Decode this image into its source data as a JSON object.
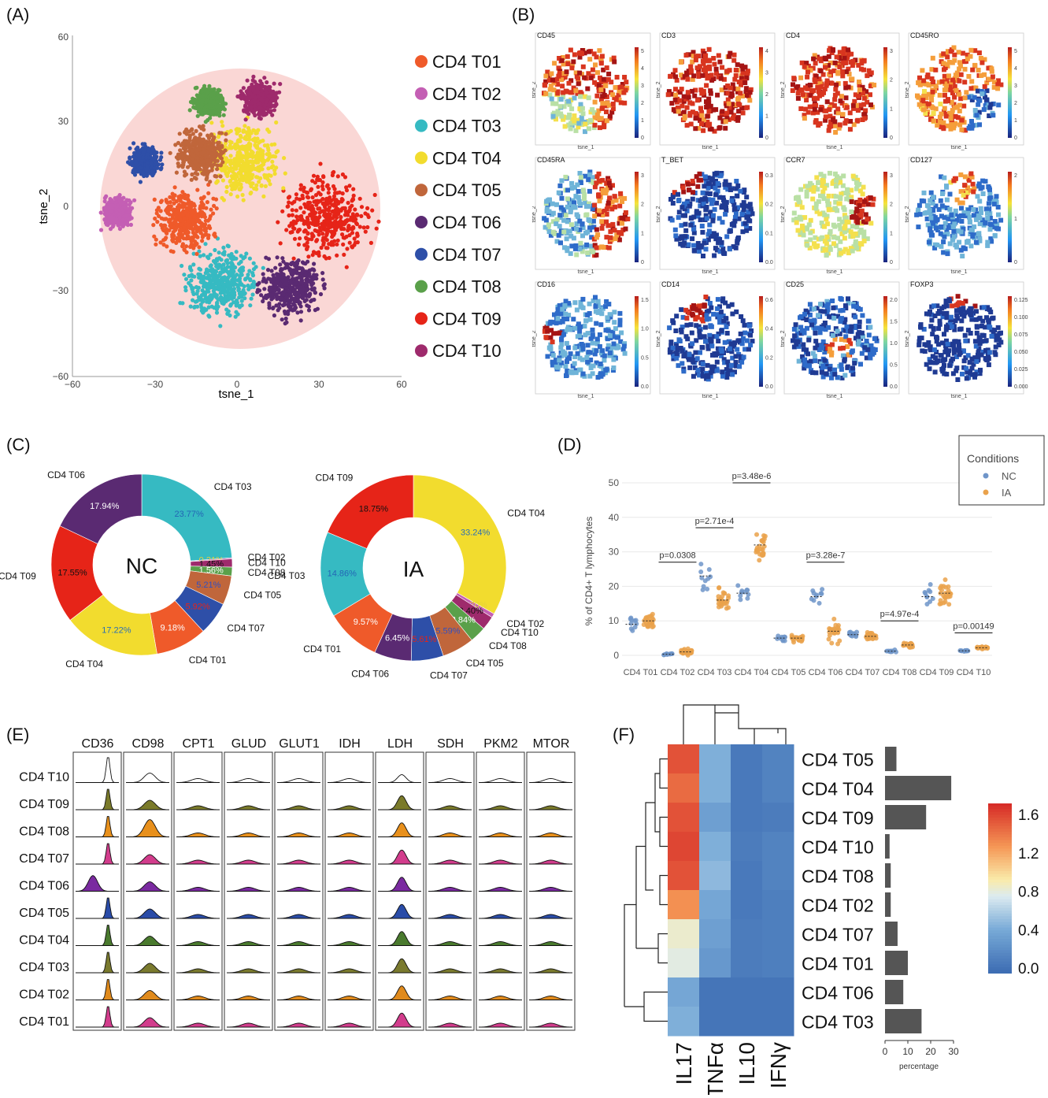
{
  "panels": {
    "A": "(A)",
    "B": "(B)",
    "C": "(C)",
    "D": "(D)",
    "E": "(E)",
    "F": "(F)"
  },
  "colors": {
    "T01": "#ef5a2a",
    "T02": "#c45fb4",
    "T03": "#36bac2",
    "T04": "#f2dc2e",
    "T05": "#c0663b",
    "T06": "#5a2a72",
    "T07": "#2e4fa8",
    "T08": "#5aa04a",
    "T09": "#e62418",
    "T10": "#9e2a6c"
  },
  "panelA": {
    "xlabel": "tsne_1",
    "ylabel": "tsne_2",
    "xticks": [
      "−60",
      "−30",
      "0",
      "30",
      "60"
    ],
    "yticks": [
      "60",
      "30",
      "0",
      "−30",
      "−60"
    ],
    "legend": [
      "CD4 T01",
      "CD4 T02",
      "CD4 T03",
      "CD4 T04",
      "CD4 T05",
      "CD4 T06",
      "CD4 T07",
      "CD4 T08",
      "CD4 T09",
      "CD4 T10"
    ]
  },
  "panelB": {
    "xlabel": "tsne_1",
    "ylabel": "tsne_2",
    "maps": [
      {
        "name": "CD45",
        "ticks": [
          "5",
          "4",
          "3",
          "2",
          "1",
          "0"
        ]
      },
      {
        "name": "CD3",
        "ticks": [
          "4",
          "3",
          "2",
          "1",
          "0"
        ]
      },
      {
        "name": "CD4",
        "ticks": [
          "3",
          "2",
          "1",
          "0"
        ]
      },
      {
        "name": "CD45RO",
        "ticks": [
          "5",
          "4",
          "3",
          "2",
          "1",
          "0"
        ]
      },
      {
        "name": "CD45RA",
        "ticks": [
          "3",
          "2",
          "1",
          "0"
        ]
      },
      {
        "name": "T_BET",
        "ticks": [
          "0.3",
          "0.2",
          "0.1",
          "0.0"
        ]
      },
      {
        "name": "CCR7",
        "ticks": [
          "3",
          "2",
          "1",
          "0"
        ]
      },
      {
        "name": "CD127",
        "ticks": [
          "2",
          "1",
          "0"
        ]
      },
      {
        "name": "CD16",
        "ticks": [
          "1.5",
          "1.0",
          "0.5",
          "0.0"
        ]
      },
      {
        "name": "CD14",
        "ticks": [
          "0.6",
          "0.4",
          "0.2",
          "0.0"
        ]
      },
      {
        "name": "CD25",
        "ticks": [
          "2.0",
          "1.5",
          "1.0",
          "0.5",
          "0.0"
        ]
      },
      {
        "name": "FOXP3",
        "ticks": [
          "0.125",
          "0.100",
          "0.075",
          "0.050",
          "0.025",
          "0.000"
        ]
      }
    ]
  },
  "chart_data": [
    {
      "type": "pie",
      "title": "NC",
      "slices": [
        {
          "label": "CD4 T03",
          "value": 23.77,
          "pct": "23.77%",
          "color": "#36bac2"
        },
        {
          "label": "CD4 T02",
          "value": 0.21,
          "pct": "0.21%",
          "color": "#c45fb4"
        },
        {
          "label": "CD4 T10",
          "value": 1.45,
          "pct": "1.45%",
          "color": "#9e2a6c"
        },
        {
          "label": "CD4 T08",
          "value": 1.56,
          "pct": "1.56%",
          "color": "#5aa04a"
        },
        {
          "label": "CD4 T05",
          "value": 5.21,
          "pct": "5.21%",
          "color": "#c0663b"
        },
        {
          "label": "CD4 T07",
          "value": 5.92,
          "pct": "5.92%",
          "color": "#2e4fa8"
        },
        {
          "label": "CD4 T01",
          "value": 9.18,
          "pct": "9.18%",
          "color": "#ef5a2a"
        },
        {
          "label": "CD4 T04",
          "value": 17.22,
          "pct": "17.22%",
          "color": "#f2dc2e"
        },
        {
          "label": "CD4 T09",
          "value": 17.55,
          "pct": "17.55%",
          "color": "#e62418"
        },
        {
          "label": "CD4 T06",
          "value": 17.94,
          "pct": "17.94%",
          "color": "#5a2a72"
        }
      ]
    },
    {
      "type": "pie",
      "title": "IA",
      "slices": [
        {
          "label": "CD4 T04",
          "value": 33.24,
          "pct": "33.24%",
          "color": "#f2dc2e"
        },
        {
          "label": "CD4 T02",
          "value": 0.7,
          "pct": "0.70%",
          "color": "#c45fb4"
        },
        {
          "label": "CD4 T10",
          "value": 2.4,
          "pct": "2.40%",
          "color": "#9e2a6c"
        },
        {
          "label": "CD4 T08",
          "value": 2.84,
          "pct": "2.84%",
          "color": "#5aa04a"
        },
        {
          "label": "CD4 T05",
          "value": 5.59,
          "pct": "5.59%",
          "color": "#c0663b"
        },
        {
          "label": "CD4 T07",
          "value": 5.61,
          "pct": "5.61%",
          "color": "#2e4fa8"
        },
        {
          "label": "CD4 T06",
          "value": 6.45,
          "pct": "6.45%",
          "color": "#5a2a72"
        },
        {
          "label": "CD4 T01",
          "value": 9.57,
          "pct": "9.57%",
          "color": "#ef5a2a"
        },
        {
          "label": "CD4 T03",
          "value": 14.86,
          "pct": "14.86%",
          "color": "#36bac2"
        },
        {
          "label": "CD4 T09",
          "value": 18.75,
          "pct": "18.75%",
          "color": "#e62418"
        }
      ]
    },
    {
      "type": "scatter",
      "ylabel": "% of CD4+ T lymphocytes",
      "ylim": [
        0,
        50
      ],
      "yticks": [
        0,
        10,
        20,
        30,
        40,
        50
      ],
      "legend_title": "Conditions",
      "legend_position": "top-right",
      "series": [
        {
          "name": "NC",
          "color": "#6f95c9"
        },
        {
          "name": "IA",
          "color": "#eaa24b"
        }
      ],
      "categories": [
        "CD4 T01",
        "CD4 T02",
        "CD4 T03",
        "CD4 T04",
        "CD4 T05",
        "CD4 T06",
        "CD4 T07",
        "CD4 T08",
        "CD4 T09",
        "CD4 T10"
      ],
      "means_nc": [
        9,
        0.3,
        23,
        18,
        5,
        17,
        6,
        1.2,
        17,
        1.3
      ],
      "means_ia": [
        10,
        1,
        16,
        32,
        5,
        7,
        5.5,
        3,
        18,
        2.2
      ],
      "spread_nc": [
        4,
        0.4,
        7,
        4,
        1.5,
        4,
        1.5,
        0.6,
        5,
        0.3
      ],
      "spread_ia": [
        4,
        1.5,
        6,
        7,
        1.5,
        5,
        2,
        1.2,
        7,
        0.6
      ],
      "pvalues": [
        {
          "category": "CD4 T02",
          "label": "p=0.0308",
          "y": 27
        },
        {
          "category": "CD4 T03",
          "label": "p=2.71e-4",
          "y": 37
        },
        {
          "category": "CD4 T04",
          "label": "p=3.48e-6",
          "y": 50
        },
        {
          "category": "CD4 T06",
          "label": "p=3.28e-7",
          "y": 27
        },
        {
          "category": "CD4 T08",
          "label": "p=4.97e-4",
          "y": 10
        },
        {
          "category": "CD4 T10",
          "label": "p=0.00149",
          "y": 6.5
        }
      ]
    },
    {
      "type": "heatmap",
      "rows": [
        "CD4 T05",
        "CD4 T04",
        "CD4 T09",
        "CD4 T10",
        "CD4 T08",
        "CD4 T02",
        "CD4 T07",
        "CD4 T01",
        "CD4 T06",
        "CD4 T03"
      ],
      "cols": [
        "IL17",
        "TNFα",
        "IL10",
        "IFNγ"
      ],
      "values": [
        [
          1.55,
          0.45,
          0.08,
          0.15
        ],
        [
          1.45,
          0.45,
          0.08,
          0.15
        ],
        [
          1.55,
          0.35,
          0.08,
          0.1
        ],
        [
          1.6,
          0.45,
          0.1,
          0.15
        ],
        [
          1.55,
          0.5,
          0.08,
          0.15
        ],
        [
          1.3,
          0.4,
          0.08,
          0.12
        ],
        [
          0.85,
          0.35,
          0.1,
          0.12
        ],
        [
          0.8,
          0.3,
          0.1,
          0.12
        ],
        [
          0.4,
          0.05,
          0.05,
          0.05
        ],
        [
          0.45,
          0.05,
          0.05,
          0.05
        ]
      ],
      "colorbar_ticks": [
        "1.6",
        "1.2",
        "0.8",
        "0.4",
        "0.0"
      ],
      "bar_percentages": [
        5,
        29,
        18,
        2,
        2.5,
        2.5,
        5.5,
        10,
        8,
        16
      ],
      "bar_xticks": [
        "0",
        "10",
        "20",
        "30"
      ],
      "bar_xlabel": "percentage"
    }
  ],
  "panelE": {
    "markers": [
      "CD36",
      "CD98",
      "CPT1",
      "GLUD",
      "GLUT1",
      "IDH",
      "LDH",
      "SDH",
      "PKM2",
      "MTOR"
    ],
    "rows": [
      "CD4 T10",
      "CD4 T09",
      "CD4 T08",
      "CD4 T07",
      "CD4 T06",
      "CD4 T05",
      "CD4 T04",
      "CD4 T03",
      "CD4 T02",
      "CD4 T01"
    ],
    "row_colors": [
      "#ffffff",
      "#7a7a2a",
      "#e8901c",
      "#d23c8c",
      "#7a2aa0",
      "#2a4ca8",
      "#4a7a2e",
      "#7a7a2e",
      "#e08a1c",
      "#d23c8c"
    ]
  }
}
